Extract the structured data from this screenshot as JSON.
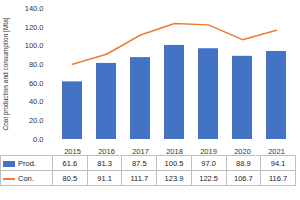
{
  "chart_data": {
    "type": "bar",
    "y_label": "Coal production and consumption [Mta]",
    "categories": [
      "2015",
      "2016",
      "2017",
      "2018",
      "2019",
      "2020",
      "2021"
    ],
    "series": [
      {
        "name": "Prod.",
        "type": "bar",
        "color": "#4472c4",
        "values": [
          61.6,
          81.3,
          87.5,
          100.5,
          97.0,
          88.9,
          94.1
        ],
        "value_labels": [
          "61.6",
          "81.3",
          "87.5",
          "100.5",
          "97.0",
          "88.9",
          "94.1"
        ]
      },
      {
        "name": "Con.",
        "type": "line",
        "color": "#ed7d31",
        "values": [
          80.5,
          91.1,
          111.7,
          123.9,
          122.5,
          106.7,
          116.7
        ],
        "value_labels": [
          "80.5",
          "91.1",
          "111.7",
          "123.9",
          "122.5",
          "106.7",
          "116.7"
        ]
      }
    ],
    "ylim": [
      0,
      140
    ],
    "yticks": [
      {
        "value": 0,
        "label": "0.0"
      },
      {
        "value": 20,
        "label": "20.0"
      },
      {
        "value": 40,
        "label": "40.0"
      },
      {
        "value": 60,
        "label": "60.0"
      },
      {
        "value": 80,
        "label": "80.0"
      },
      {
        "value": 100,
        "label": "100.0"
      },
      {
        "value": 120,
        "label": "120.0"
      },
      {
        "value": 140,
        "label": "140.0"
      }
    ],
    "grid": false,
    "data_labels": true
  }
}
